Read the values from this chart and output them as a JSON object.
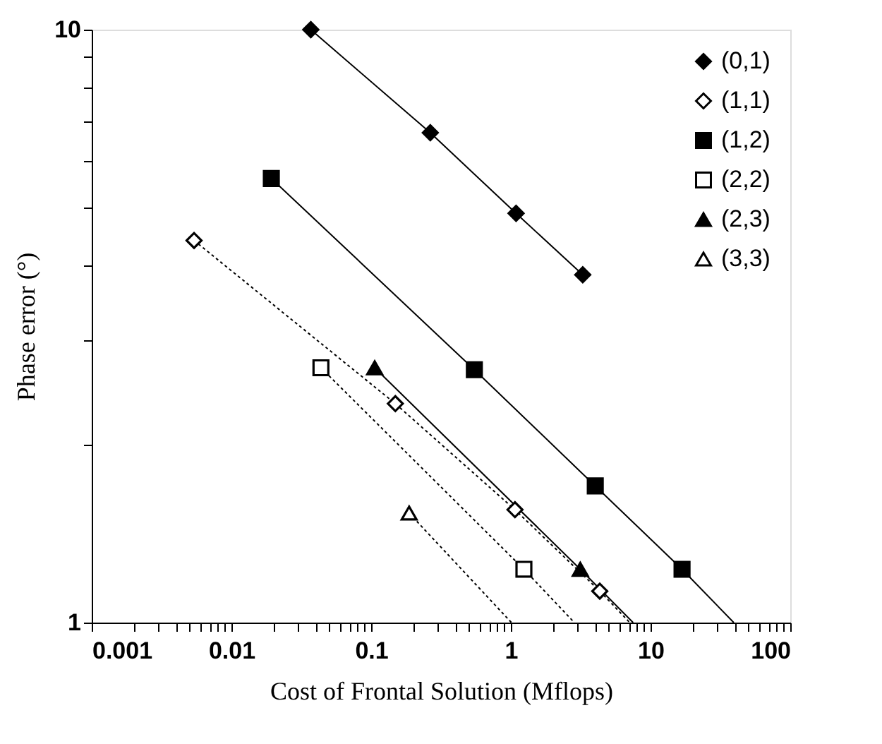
{
  "chart_data": {
    "type": "line",
    "xlabel": "Cost of Frontal Solution (Mflops)",
    "ylabel": "Phase error (°)",
    "log": "xy",
    "grid": false,
    "legend": "top right",
    "xlim": [
      0.001,
      100
    ],
    "ylim": [
      1,
      10
    ],
    "xticks": [
      0.001,
      {
        "value": 0.002,
        "label": null
      },
      {
        "value": 0.003,
        "label": null
      },
      {
        "value": 0.004,
        "label": null
      },
      {
        "value": 0.005,
        "label": null
      },
      {
        "value": 0.006,
        "label": null
      },
      {
        "value": 0.007,
        "label": null
      },
      {
        "value": 0.008,
        "label": null
      },
      {
        "value": 0.009,
        "label": null
      },
      0.01,
      {
        "value": 0.02,
        "label": null
      },
      {
        "value": 0.03,
        "label": null
      },
      {
        "value": 0.04,
        "label": null
      },
      {
        "value": 0.05,
        "label": null
      },
      {
        "value": 0.06,
        "label": null
      },
      {
        "value": 0.07,
        "label": null
      },
      {
        "value": 0.08,
        "label": null
      },
      {
        "value": 0.09,
        "label": null
      },
      0.1,
      {
        "value": 0.2,
        "label": null
      },
      {
        "value": 0.3,
        "label": null
      },
      {
        "value": 0.4,
        "label": null
      },
      {
        "value": 0.5,
        "label": null
      },
      {
        "value": 0.6,
        "label": null
      },
      {
        "value": 0.7,
        "label": null
      },
      {
        "value": 0.8,
        "label": null
      },
      {
        "value": 0.9,
        "label": null
      },
      1,
      {
        "value": 2,
        "label": null
      },
      {
        "value": 3,
        "label": null
      },
      {
        "value": 4,
        "label": null
      },
      {
        "value": 5,
        "label": null
      },
      {
        "value": 6,
        "label": null
      },
      {
        "value": 7,
        "label": null
      },
      {
        "value": 8,
        "label": null
      },
      {
        "value": 9,
        "label": null
      },
      10,
      {
        "value": 20,
        "label": null
      },
      {
        "value": 30,
        "label": null
      },
      {
        "value": 40,
        "label": null
      },
      {
        "value": 50,
        "label": null
      },
      {
        "value": 60,
        "label": null
      },
      {
        "value": 70,
        "label": null
      },
      {
        "value": 80,
        "label": null
      },
      {
        "value": 90,
        "label": null
      },
      100
    ],
    "yticks": [
      1,
      {
        "value": 2,
        "label": null
      },
      {
        "value": 3,
        "label": null
      },
      {
        "value": 4,
        "label": null
      },
      {
        "value": 5,
        "label": null
      },
      {
        "value": 6,
        "label": null
      },
      {
        "value": 7,
        "label": null
      },
      {
        "value": 8,
        "label": null
      },
      {
        "value": 9,
        "label": null
      },
      10
    ],
    "series": [
      {
        "name": "(0,1)",
        "color": "#000000",
        "marker": "diamond",
        "line_style": "solid",
        "x": [
          0.037,
          0.265,
          1.09,
          3.27
        ],
        "values": [
          10,
          6.7,
          4.9,
          3.86
        ]
      },
      {
        "name": "(1,1)",
        "color": "#000000",
        "marker": "diamond",
        "line_style": "dotted",
        "x": [
          0.0054,
          0.149,
          1.07,
          4.33
        ],
        "values": [
          4.41,
          2.34,
          1.55,
          1.13
        ]
      },
      {
        "name": "(1,2)",
        "color": "#000000",
        "marker": "square",
        "line_style": "solid",
        "x": [
          0.0193,
          0.548,
          4.02,
          16.8
        ],
        "values": [
          5.61,
          2.67,
          1.7,
          1.23
        ]
      },
      {
        "name": "(2,2)",
        "color": "#000000",
        "marker": "square",
        "line_style": "dotted",
        "x": [
          0.0437,
          1.24
        ],
        "values": [
          2.69,
          1.23
        ]
      },
      {
        "name": "(2,3)",
        "color": "#000000",
        "marker": "triangle",
        "line_style": "solid",
        "x": [
          0.106,
          3.14
        ],
        "values": [
          2.69,
          1.23
        ]
      },
      {
        "name": "(3,3)",
        "color": "#000000",
        "marker": "triangle",
        "line_style": "dotted",
        "x": [
          0.187
        ],
        "values": [
          1.53
        ]
      },
      {
        "type": "line",
        "color": "#000000",
        "marker": "none",
        "line_style": "dotted",
        "x": [
          4.33,
          7.1
        ],
        "values": [
          1.13,
          1
        ]
      },
      {
        "type": "line",
        "color": "#000000",
        "marker": "none",
        "line_style": "solid",
        "x": [
          16.8,
          39.4
        ],
        "values": [
          1.23,
          1
        ]
      },
      {
        "type": "line",
        "color": "#000000",
        "marker": "none",
        "line_style": "dotted",
        "x": [
          1.24,
          2.85
        ],
        "values": [
          1.23,
          1
        ]
      },
      {
        "type": "line",
        "color": "#000000",
        "marker": "none",
        "line_style": "solid",
        "x": [
          3.14,
          7.5
        ],
        "values": [
          1.23,
          1
        ]
      },
      {
        "type": "line",
        "color": "#000000",
        "marker": "none",
        "line_style": "dotted",
        "x": [
          0.187,
          1.01
        ],
        "values": [
          1.53,
          1
        ]
      }
    ]
  }
}
